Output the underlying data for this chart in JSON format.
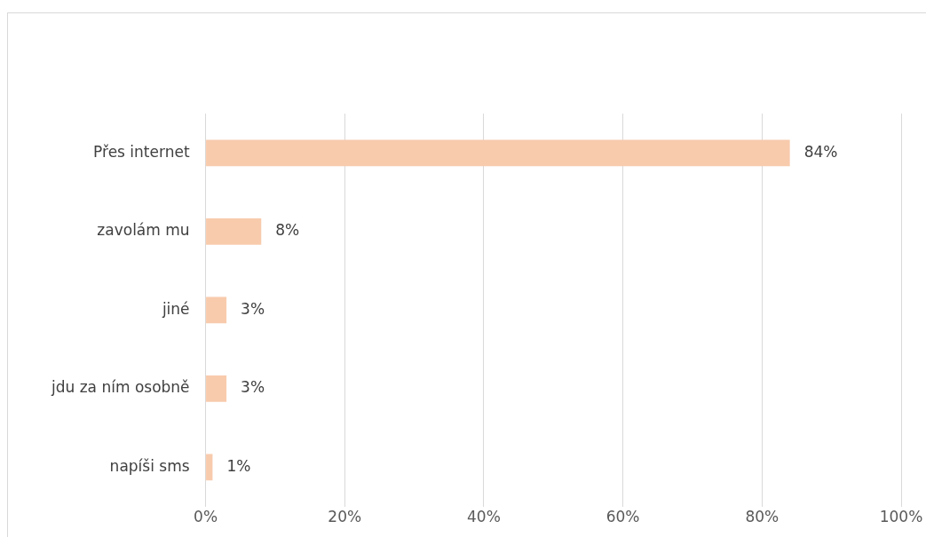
{
  "chart_data": {
    "type": "bar",
    "orientation": "horizontal",
    "categories": [
      "Přes internet",
      "zavolám mu",
      "jiné",
      "jdu za ním osobně",
      "napíši sms"
    ],
    "values": [
      84,
      8,
      3,
      3,
      1
    ],
    "value_labels": [
      "84%",
      "8%",
      "3%",
      "3%",
      "1%"
    ],
    "color": "#f8cbad",
    "xlim": [
      0,
      100
    ],
    "xticks": [
      {
        "value": 0,
        "label": "0%"
      },
      {
        "value": 20,
        "label": "20%"
      },
      {
        "value": 40,
        "label": "40%"
      },
      {
        "value": 60,
        "label": "60%"
      },
      {
        "value": 80,
        "label": "80%"
      },
      {
        "value": 100,
        "label": "100%"
      }
    ],
    "grid": "x",
    "legend": false
  }
}
